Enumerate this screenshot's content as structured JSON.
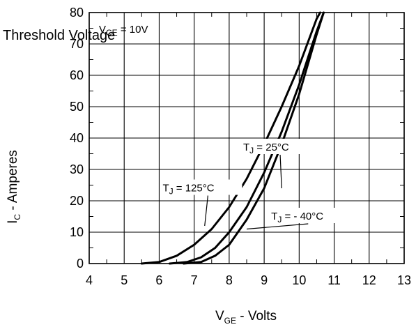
{
  "chart_data": {
    "type": "line",
    "title": "Threshold Voltage",
    "condition": {
      "prefix": "V",
      "sub": "CE",
      "suffix": " = 10V"
    },
    "xlabel": {
      "main": "V",
      "sub": "GE",
      "rest": " - Volts"
    },
    "ylabel": {
      "main": "I",
      "sub": "C",
      "rest": " - Amperes"
    },
    "xlim": [
      4,
      13
    ],
    "ylim": [
      0,
      80
    ],
    "x_ticks": [
      "4",
      "5",
      "6",
      "7",
      "8",
      "9",
      "10",
      "11",
      "12",
      "13"
    ],
    "y_ticks": [
      "0",
      "10",
      "20",
      "30",
      "40",
      "50",
      "60",
      "70",
      "80"
    ],
    "grid": true,
    "series": [
      {
        "name": "T_J = 125°C",
        "points": [
          [
            5.5,
            0
          ],
          [
            6.0,
            0.5
          ],
          [
            6.5,
            2.5
          ],
          [
            7.0,
            6
          ],
          [
            7.5,
            11
          ],
          [
            8.0,
            18
          ],
          [
            8.5,
            27
          ],
          [
            9.0,
            38
          ],
          [
            9.5,
            50
          ],
          [
            10.0,
            63
          ],
          [
            10.5,
            78
          ],
          [
            10.6,
            80
          ]
        ]
      },
      {
        "name": "T_J = 25°C",
        "points": [
          [
            6.3,
            0
          ],
          [
            6.8,
            0.5
          ],
          [
            7.2,
            2
          ],
          [
            7.6,
            5
          ],
          [
            8.0,
            10
          ],
          [
            8.5,
            18
          ],
          [
            9.0,
            29
          ],
          [
            9.5,
            42
          ],
          [
            10.0,
            57
          ],
          [
            10.5,
            74
          ],
          [
            10.7,
            80
          ]
        ]
      },
      {
        "name": "T_J = -40°C",
        "points": [
          [
            6.7,
            0
          ],
          [
            7.2,
            0.5
          ],
          [
            7.6,
            2.5
          ],
          [
            8.0,
            6
          ],
          [
            8.5,
            14
          ],
          [
            9.0,
            24
          ],
          [
            9.5,
            38
          ],
          [
            10.0,
            54
          ],
          [
            10.5,
            73
          ],
          [
            10.7,
            80
          ]
        ]
      }
    ],
    "annotations": [
      {
        "prefix": "T",
        "sub": "J",
        "rest": " = 25°C",
        "at": [
          8.4,
          36
        ],
        "target": [
          9.5,
          24
        ]
      },
      {
        "prefix": "T",
        "sub": "J",
        "rest": " = 125°C",
        "at": [
          6.1,
          23
        ],
        "target": [
          7.3,
          12
        ]
      },
      {
        "prefix": "T",
        "sub": "J",
        "rest": " = - 40°C",
        "at": [
          9.2,
          14
        ],
        "target": [
          8.5,
          11
        ]
      }
    ]
  }
}
